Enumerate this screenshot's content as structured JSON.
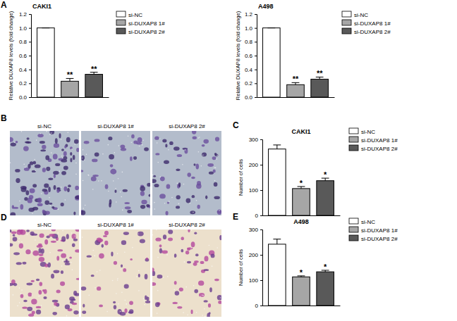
{
  "panel_labels": [
    "A",
    "B",
    "C",
    "D",
    "E"
  ],
  "chart_data": [
    {
      "type": "bar",
      "title": "CAKI1",
      "y_label": "Relative DUXAP8 levels (fold change)",
      "categories": [
        "si-NC",
        "si-DUXAP8 1#",
        "si-DUXAP8 2#"
      ],
      "values": [
        1.0,
        0.23,
        0.33
      ],
      "errors": [
        0,
        0.04,
        0.03
      ],
      "significance": [
        null,
        "**",
        "**"
      ],
      "colors": [
        "#ffffff",
        "#a6a6a6",
        "#595959"
      ],
      "ylim": [
        0,
        1.2
      ],
      "yticks": [
        {
          "value": 0,
          "label": "0.0"
        },
        {
          "value": 0.2,
          "label": "0.2"
        },
        {
          "value": 0.4,
          "label": "0.4"
        },
        {
          "value": 0.6,
          "label": "0.6"
        },
        {
          "value": 0.8,
          "label": "0.8"
        },
        {
          "value": 1,
          "label": "1.0"
        },
        {
          "value": 1.2,
          "label": "1.2"
        }
      ],
      "legend": "right",
      "tick_labels": "y"
    },
    {
      "type": "bar",
      "title": "A498",
      "y_label": "Relative DUXAP8 levels (fold change)",
      "categories": [
        "si-NC",
        "si-DUXAP8 1#",
        "si-DUXAP8 2#"
      ],
      "values": [
        1.0,
        0.18,
        0.26
      ],
      "errors": [
        0,
        0.03,
        0.03
      ],
      "significance": [
        null,
        "**",
        "**"
      ],
      "colors": [
        "#ffffff",
        "#a6a6a6",
        "#595959"
      ],
      "ylim": [
        0,
        1.2
      ],
      "yticks": [
        {
          "value": 0,
          "label": "0.0"
        },
        {
          "value": 0.2,
          "label": "0.2"
        },
        {
          "value": 0.4,
          "label": "0.4"
        },
        {
          "value": 0.6,
          "label": "0.6"
        },
        {
          "value": 0.8,
          "label": "0.8"
        },
        {
          "value": 1,
          "label": "1.0"
        },
        {
          "value": 1.2,
          "label": "1.2"
        }
      ],
      "legend": "right",
      "tick_labels": "y"
    },
    {
      "type": "bar",
      "title": "CAKI1",
      "y_label": "Number of cells",
      "categories": [
        "si-NC",
        "si-DUXAP8 1#",
        "si-DUXAP8 2#"
      ],
      "values": [
        262,
        106,
        137
      ],
      "errors": [
        16,
        8,
        10
      ],
      "significance": [
        null,
        "*",
        "*"
      ],
      "colors": [
        "#ffffff",
        "#a6a6a6",
        "#595959"
      ],
      "ylim": [
        0,
        300
      ],
      "yticks": [
        0,
        100,
        200,
        300
      ],
      "legend": "right",
      "tick_labels": "y"
    },
    {
      "type": "bar",
      "title": "A498",
      "y_label": "Number of cells",
      "categories": [
        "si-NC",
        "si-DUXAP8 1#",
        "si-DUXAP8 2#"
      ],
      "values": [
        242,
        113,
        133
      ],
      "errors": [
        20,
        4,
        6
      ],
      "significance": [
        null,
        "*",
        "*"
      ],
      "colors": [
        "#ffffff",
        "#a6a6a6",
        "#595959"
      ],
      "ylim": [
        0,
        300
      ],
      "yticks": [
        0,
        100,
        200,
        300
      ],
      "legend": "right",
      "tick_labels": "y"
    }
  ],
  "image_panels": [
    {
      "captions": [
        "si-NC",
        "si-DUXAP8 1#",
        "si-DUXAP8 2#"
      ]
    },
    {
      "captions": [
        "si-NC",
        "si-DUXAP8 1#",
        "si-DUXAP8 2#"
      ]
    }
  ]
}
